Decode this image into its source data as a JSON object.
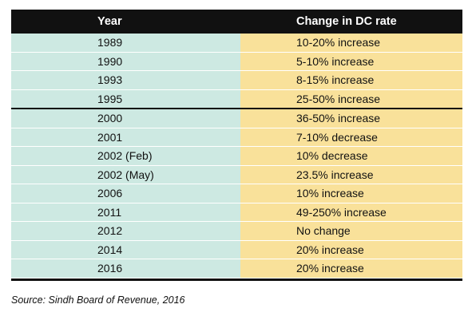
{
  "table": {
    "headers": {
      "year": "Year",
      "change": "Change in DC rate"
    },
    "rows": [
      {
        "year": "1989",
        "change": "10-20% increase"
      },
      {
        "year": "1990",
        "change": "5-10% increase"
      },
      {
        "year": "1993",
        "change": "8-15% increase"
      },
      {
        "year": "1995",
        "change": "25-50% increase"
      },
      {
        "year": "2000",
        "change": "36-50% increase"
      },
      {
        "year": "2001",
        "change": "7-10% decrease"
      },
      {
        "year": "2002 (Feb)",
        "change": "10% decrease"
      },
      {
        "year": "2002 (May)",
        "change": "23.5% increase"
      },
      {
        "year": "2006",
        "change": "10% increase"
      },
      {
        "year": "2011",
        "change": "49-250% increase"
      },
      {
        "year": "2012",
        "change": "No change"
      },
      {
        "year": "2014",
        "change": "20% increase"
      },
      {
        "year": "2016",
        "change": "20% increase"
      }
    ]
  },
  "source": "Source: Sindh Board of Revenue, 2016",
  "colors": {
    "header_bg": "#111111",
    "year_bg": "#cde9e2",
    "change_bg": "#f9e19a"
  }
}
